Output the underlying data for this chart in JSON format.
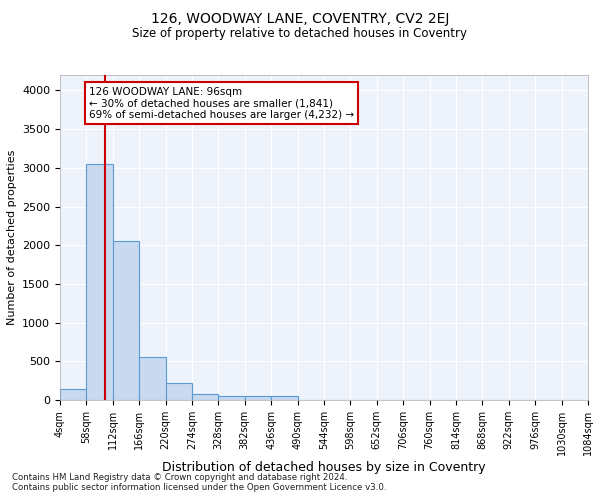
{
  "title1": "126, WOODWAY LANE, COVENTRY, CV2 2EJ",
  "title2": "Size of property relative to detached houses in Coventry",
  "xlabel": "Distribution of detached houses by size in Coventry",
  "ylabel": "Number of detached properties",
  "footnote1": "Contains HM Land Registry data © Crown copyright and database right 2024.",
  "footnote2": "Contains public sector information licensed under the Open Government Licence v3.0.",
  "bin_edges": [
    4,
    58,
    112,
    166,
    220,
    274,
    328,
    382,
    436,
    490,
    544,
    598,
    652,
    706,
    760,
    814,
    868,
    922,
    976,
    1030,
    1084
  ],
  "bar_heights": [
    140,
    3050,
    2060,
    550,
    220,
    80,
    55,
    50,
    50,
    0,
    0,
    0,
    0,
    0,
    0,
    0,
    0,
    0,
    0,
    0
  ],
  "property_size": 96,
  "annotation_text": "126 WOODWAY LANE: 96sqm\n← 30% of detached houses are smaller (1,841)\n69% of semi-detached houses are larger (4,232) →",
  "bar_color": "#c8d9f0",
  "bar_edge_color": "#5b9bd5",
  "vline_color": "#cc0000",
  "annotation_box_color": "#cc0000",
  "background_color": "#eef2fa",
  "ylim": [
    0,
    4200
  ],
  "yticks": [
    0,
    500,
    1000,
    1500,
    2000,
    2500,
    3000,
    3500,
    4000
  ]
}
